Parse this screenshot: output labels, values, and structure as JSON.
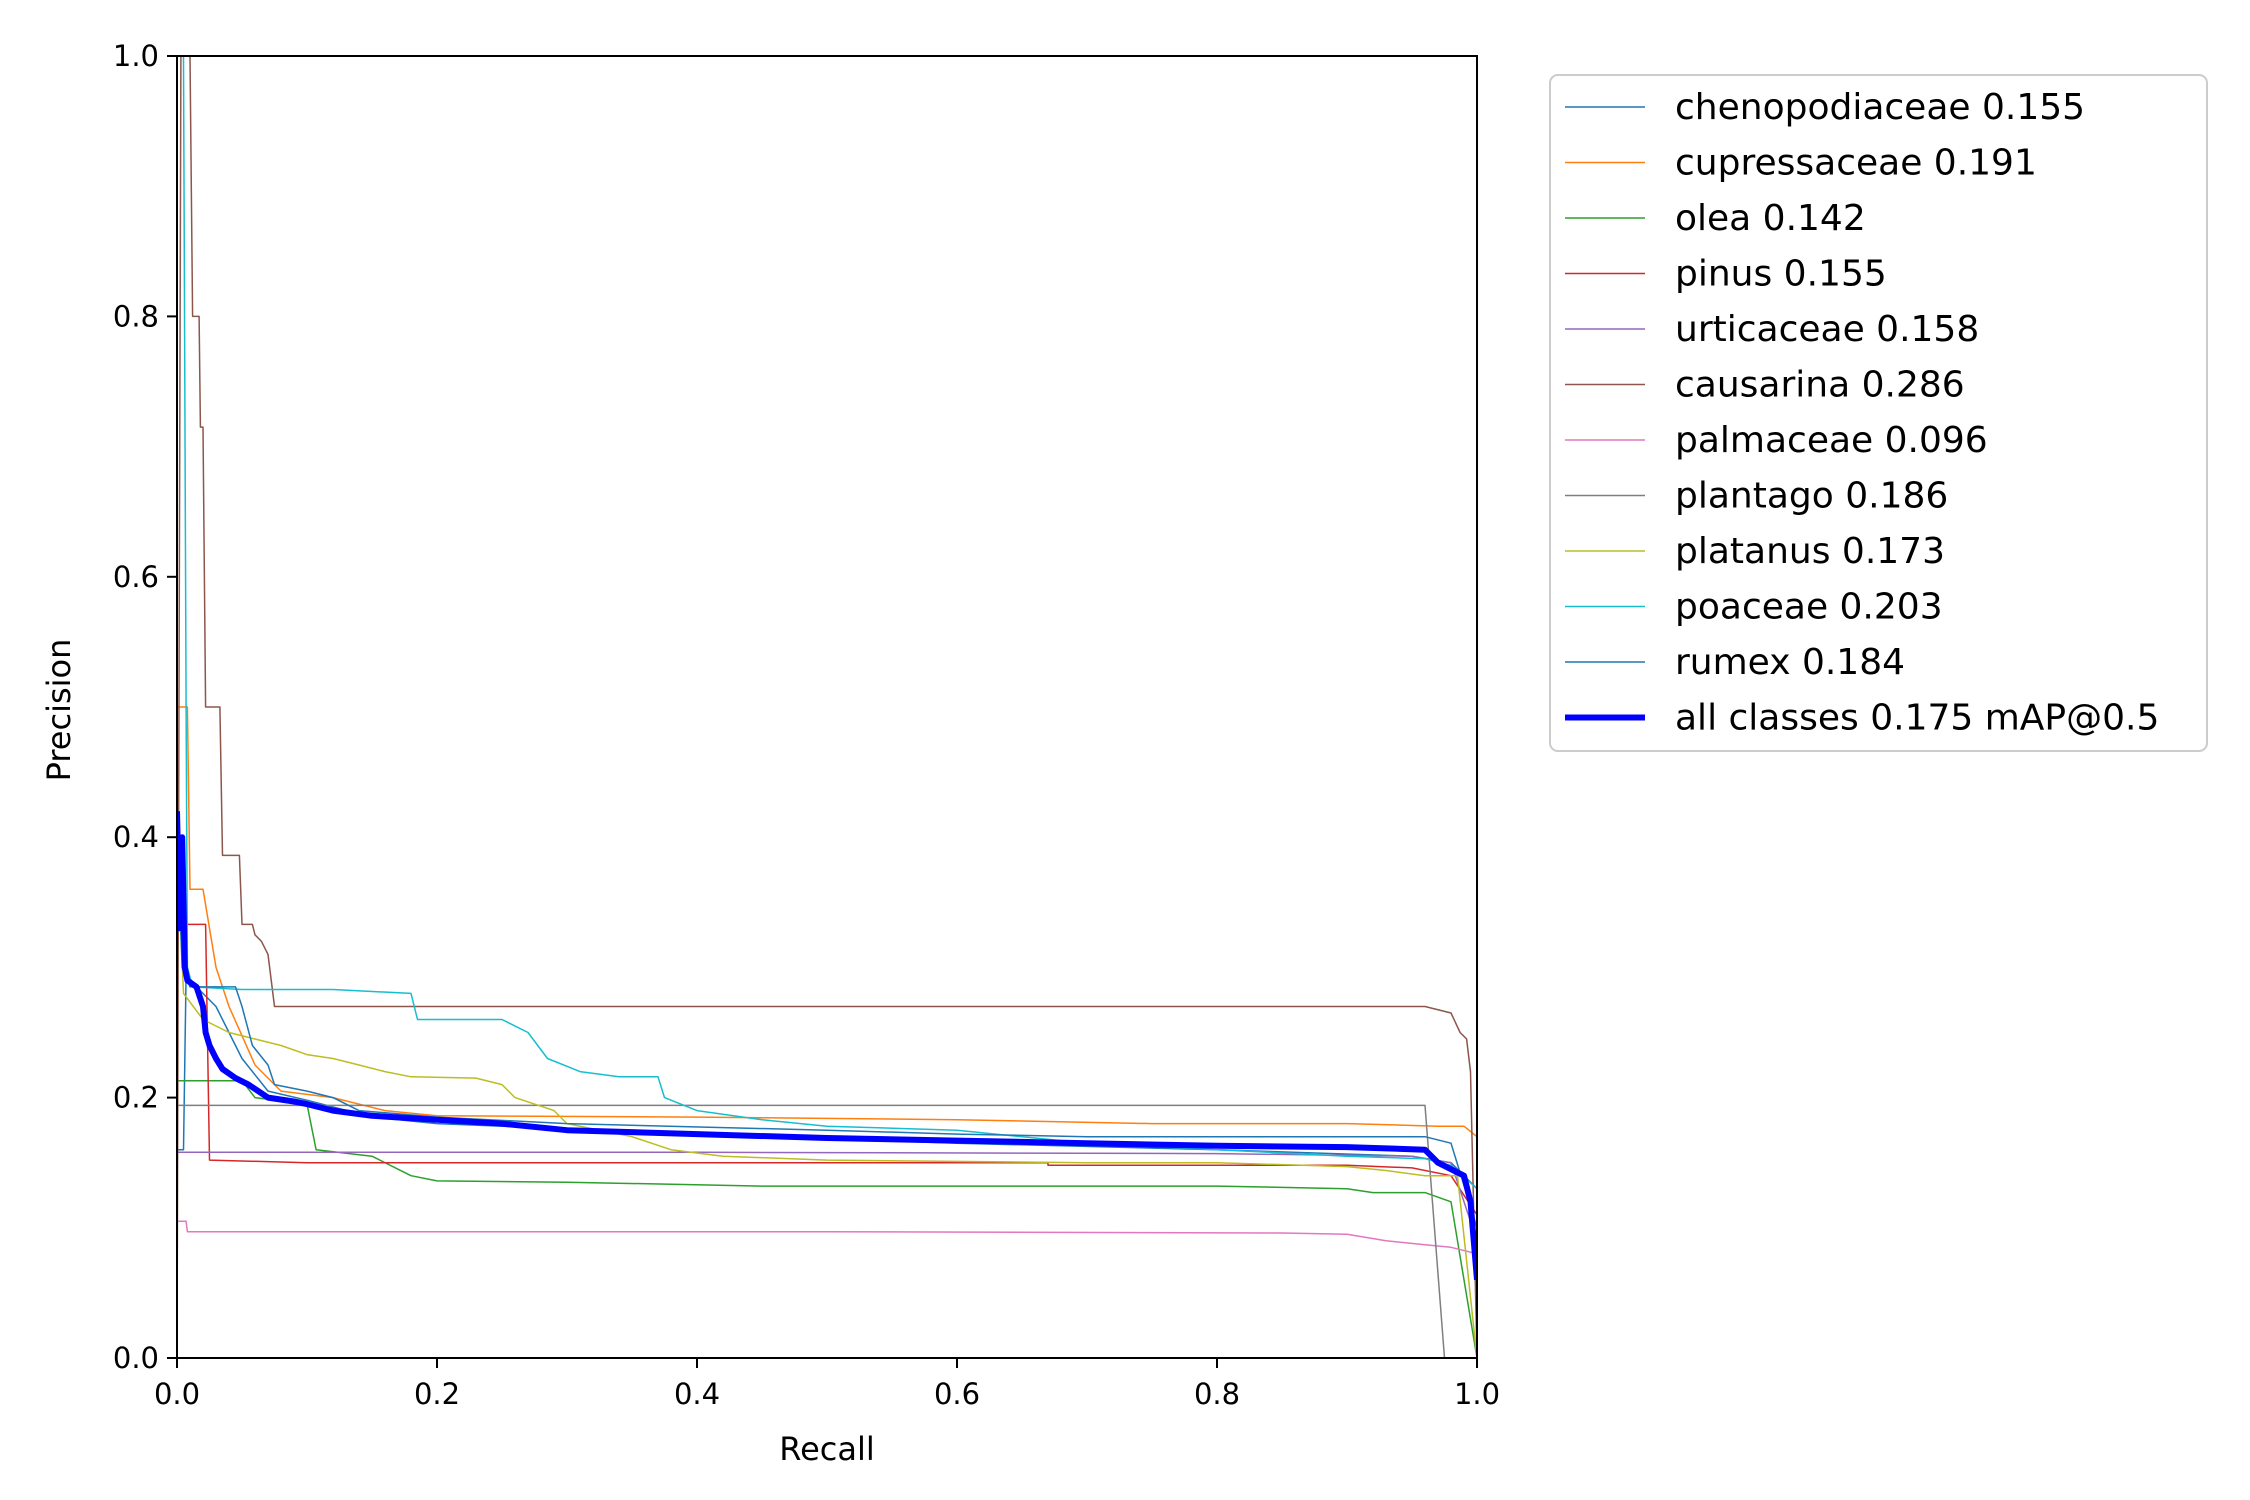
{
  "chart_data": {
    "type": "line",
    "title": "",
    "xlabel": "Recall",
    "ylabel": "Precision",
    "xlim": [
      0,
      1
    ],
    "ylim": [
      0,
      1
    ],
    "xticks": [
      "0.0",
      "0.2",
      "0.4",
      "0.6",
      "0.8",
      "1.0"
    ],
    "yticks": [
      "0.0",
      "0.2",
      "0.4",
      "0.6",
      "0.8",
      "1.0"
    ],
    "grid": false,
    "legend_position": "outside-top-right",
    "series": [
      {
        "name": "chenopodiaceae 0.155",
        "color": "#1f77b4",
        "width": 1.5,
        "points": [
          [
            0.0,
            0.16
          ],
          [
            0.005,
            0.16
          ],
          [
            0.007,
            0.295
          ],
          [
            0.015,
            0.285
          ],
          [
            0.03,
            0.27
          ],
          [
            0.05,
            0.23
          ],
          [
            0.07,
            0.205
          ],
          [
            0.1,
            0.198
          ],
          [
            0.15,
            0.185
          ],
          [
            0.2,
            0.18
          ],
          [
            0.4,
            0.172
          ],
          [
            0.6,
            0.165
          ],
          [
            0.8,
            0.16
          ],
          [
            0.95,
            0.155
          ],
          [
            0.98,
            0.15
          ],
          [
            1.0,
            0.13
          ]
        ]
      },
      {
        "name": "cupressaceae 0.191",
        "color": "#ff7f0e",
        "width": 1.5,
        "points": [
          [
            0.0,
            0.5
          ],
          [
            0.008,
            0.5
          ],
          [
            0.01,
            0.36
          ],
          [
            0.02,
            0.36
          ],
          [
            0.03,
            0.3
          ],
          [
            0.04,
            0.27
          ],
          [
            0.06,
            0.225
          ],
          [
            0.08,
            0.205
          ],
          [
            0.12,
            0.2
          ],
          [
            0.16,
            0.19
          ],
          [
            0.2,
            0.186
          ],
          [
            0.4,
            0.185
          ],
          [
            0.6,
            0.183
          ],
          [
            0.75,
            0.18
          ],
          [
            0.9,
            0.18
          ],
          [
            0.97,
            0.178
          ],
          [
            0.99,
            0.178
          ],
          [
            1.0,
            0.17
          ]
        ]
      },
      {
        "name": "olea 0.142",
        "color": "#2ca02c",
        "width": 1.5,
        "points": [
          [
            0.0,
            0.213
          ],
          [
            0.05,
            0.213
          ],
          [
            0.06,
            0.2
          ],
          [
            0.1,
            0.195
          ],
          [
            0.107,
            0.16
          ],
          [
            0.15,
            0.155
          ],
          [
            0.18,
            0.14
          ],
          [
            0.2,
            0.136
          ],
          [
            0.3,
            0.135
          ],
          [
            0.45,
            0.132
          ],
          [
            0.6,
            0.132
          ],
          [
            0.8,
            0.132
          ],
          [
            0.9,
            0.13
          ],
          [
            0.92,
            0.127
          ],
          [
            0.96,
            0.127
          ],
          [
            0.98,
            0.12
          ],
          [
            1.0,
            0.0
          ]
        ]
      },
      {
        "name": "pinus 0.155",
        "color": "#d62728",
        "width": 1.5,
        "points": [
          [
            0.0,
            0.333
          ],
          [
            0.015,
            0.333
          ],
          [
            0.022,
            0.333
          ],
          [
            0.025,
            0.152
          ],
          [
            0.1,
            0.15
          ],
          [
            0.4,
            0.15
          ],
          [
            0.67,
            0.15
          ],
          [
            0.67,
            0.148
          ],
          [
            0.9,
            0.148
          ],
          [
            0.95,
            0.146
          ],
          [
            0.98,
            0.14
          ],
          [
            1.0,
            0.11
          ]
        ]
      },
      {
        "name": "urticaceae 0.158",
        "color": "#9467bd",
        "width": 1.5,
        "points": [
          [
            0.0,
            0.158
          ],
          [
            0.4,
            0.158
          ],
          [
            0.8,
            0.157
          ],
          [
            0.95,
            0.155
          ],
          [
            0.98,
            0.15
          ],
          [
            1.0,
            0.09
          ]
        ]
      },
      {
        "name": "causarina 0.286",
        "color": "#8c564b",
        "width": 1.5,
        "points": [
          [
            0.0,
            0.0
          ],
          [
            0.003,
            1.0
          ],
          [
            0.01,
            1.0
          ],
          [
            0.012,
            0.8
          ],
          [
            0.017,
            0.8
          ],
          [
            0.018,
            0.715
          ],
          [
            0.02,
            0.715
          ],
          [
            0.022,
            0.5
          ],
          [
            0.033,
            0.5
          ],
          [
            0.035,
            0.386
          ],
          [
            0.048,
            0.386
          ],
          [
            0.05,
            0.333
          ],
          [
            0.058,
            0.333
          ],
          [
            0.06,
            0.325
          ],
          [
            0.065,
            0.32
          ],
          [
            0.07,
            0.31
          ],
          [
            0.075,
            0.27
          ],
          [
            0.2,
            0.27
          ],
          [
            0.4,
            0.27
          ],
          [
            0.6,
            0.27
          ],
          [
            0.8,
            0.27
          ],
          [
            0.96,
            0.27
          ],
          [
            0.98,
            0.265
          ],
          [
            0.987,
            0.25
          ],
          [
            0.992,
            0.245
          ],
          [
            0.995,
            0.22
          ],
          [
            1.0,
            0.0
          ]
        ]
      },
      {
        "name": "palmaceae 0.096",
        "color": "#e377c2",
        "width": 1.5,
        "points": [
          [
            0.0,
            0.105
          ],
          [
            0.007,
            0.105
          ],
          [
            0.008,
            0.097
          ],
          [
            0.5,
            0.097
          ],
          [
            0.85,
            0.096
          ],
          [
            0.9,
            0.095
          ],
          [
            0.93,
            0.09
          ],
          [
            0.96,
            0.087
          ],
          [
            0.98,
            0.085
          ],
          [
            1.0,
            0.08
          ]
        ]
      },
      {
        "name": "plantago 0.186",
        "color": "#7f7f7f",
        "width": 1.5,
        "points": [
          [
            0.0,
            0.194
          ],
          [
            0.4,
            0.194
          ],
          [
            0.8,
            0.194
          ],
          [
            0.96,
            0.194
          ],
          [
            0.975,
            0.0
          ]
        ]
      },
      {
        "name": "platanus 0.173",
        "color": "#bcbd22",
        "width": 1.5,
        "points": [
          [
            0.0,
            0.4
          ],
          [
            0.005,
            0.28
          ],
          [
            0.02,
            0.26
          ],
          [
            0.04,
            0.25
          ],
          [
            0.06,
            0.245
          ],
          [
            0.08,
            0.24
          ],
          [
            0.1,
            0.233
          ],
          [
            0.12,
            0.23
          ],
          [
            0.14,
            0.225
          ],
          [
            0.16,
            0.22
          ],
          [
            0.18,
            0.216
          ],
          [
            0.23,
            0.215
          ],
          [
            0.25,
            0.21
          ],
          [
            0.26,
            0.2
          ],
          [
            0.29,
            0.19
          ],
          [
            0.3,
            0.18
          ],
          [
            0.35,
            0.17
          ],
          [
            0.38,
            0.16
          ],
          [
            0.42,
            0.155
          ],
          [
            0.5,
            0.152
          ],
          [
            0.7,
            0.15
          ],
          [
            0.8,
            0.15
          ],
          [
            0.9,
            0.147
          ],
          [
            0.93,
            0.144
          ],
          [
            0.96,
            0.14
          ],
          [
            0.985,
            0.14
          ],
          [
            1.0,
            0.0
          ]
        ]
      },
      {
        "name": "poaceae 0.203",
        "color": "#17becf",
        "width": 1.5,
        "points": [
          [
            0.0,
            1.0
          ],
          [
            0.005,
            1.0
          ],
          [
            0.007,
            0.5
          ],
          [
            0.008,
            0.3
          ],
          [
            0.012,
            0.285
          ],
          [
            0.05,
            0.283
          ],
          [
            0.12,
            0.283
          ],
          [
            0.18,
            0.28
          ],
          [
            0.185,
            0.26
          ],
          [
            0.25,
            0.26
          ],
          [
            0.27,
            0.25
          ],
          [
            0.285,
            0.23
          ],
          [
            0.31,
            0.22
          ],
          [
            0.34,
            0.216
          ],
          [
            0.37,
            0.216
          ],
          [
            0.375,
            0.2
          ],
          [
            0.4,
            0.19
          ],
          [
            0.45,
            0.183
          ],
          [
            0.5,
            0.178
          ],
          [
            0.6,
            0.175
          ],
          [
            0.7,
            0.165
          ],
          [
            0.8,
            0.16
          ],
          [
            0.9,
            0.155
          ],
          [
            0.96,
            0.153
          ],
          [
            0.98,
            0.148
          ],
          [
            1.0,
            0.13
          ]
        ]
      },
      {
        "name": "rumex 0.184",
        "color": "#1f77b4",
        "width": 1.5,
        "points": [
          [
            0.0,
            0.4
          ],
          [
            0.004,
            0.3
          ],
          [
            0.01,
            0.285
          ],
          [
            0.045,
            0.285
          ],
          [
            0.05,
            0.27
          ],
          [
            0.058,
            0.24
          ],
          [
            0.07,
            0.225
          ],
          [
            0.075,
            0.21
          ],
          [
            0.1,
            0.205
          ],
          [
            0.12,
            0.2
          ],
          [
            0.14,
            0.19
          ],
          [
            0.2,
            0.185
          ],
          [
            0.3,
            0.18
          ],
          [
            0.5,
            0.175
          ],
          [
            0.6,
            0.172
          ],
          [
            0.7,
            0.17
          ],
          [
            0.8,
            0.17
          ],
          [
            0.9,
            0.17
          ],
          [
            0.96,
            0.17
          ],
          [
            0.98,
            0.165
          ],
          [
            1.0,
            0.1
          ]
        ]
      },
      {
        "name": "all classes 0.175 mAP@0.5",
        "color": "#0000ff",
        "width": 6,
        "points": [
          [
            0.0,
            0.42
          ],
          [
            0.002,
            0.33
          ],
          [
            0.004,
            0.4
          ],
          [
            0.006,
            0.3
          ],
          [
            0.008,
            0.29
          ],
          [
            0.015,
            0.285
          ],
          [
            0.02,
            0.27
          ],
          [
            0.022,
            0.25
          ],
          [
            0.025,
            0.24
          ],
          [
            0.03,
            0.23
          ],
          [
            0.035,
            0.222
          ],
          [
            0.045,
            0.215
          ],
          [
            0.055,
            0.21
          ],
          [
            0.07,
            0.2
          ],
          [
            0.09,
            0.197
          ],
          [
            0.1,
            0.195
          ],
          [
            0.12,
            0.19
          ],
          [
            0.15,
            0.186
          ],
          [
            0.2,
            0.183
          ],
          [
            0.25,
            0.18
          ],
          [
            0.3,
            0.175
          ],
          [
            0.4,
            0.172
          ],
          [
            0.5,
            0.169
          ],
          [
            0.6,
            0.167
          ],
          [
            0.7,
            0.165
          ],
          [
            0.8,
            0.163
          ],
          [
            0.9,
            0.162
          ],
          [
            0.96,
            0.16
          ],
          [
            0.97,
            0.15
          ],
          [
            0.98,
            0.145
          ],
          [
            0.99,
            0.14
          ],
          [
            0.995,
            0.12
          ],
          [
            1.0,
            0.06
          ]
        ]
      }
    ]
  }
}
